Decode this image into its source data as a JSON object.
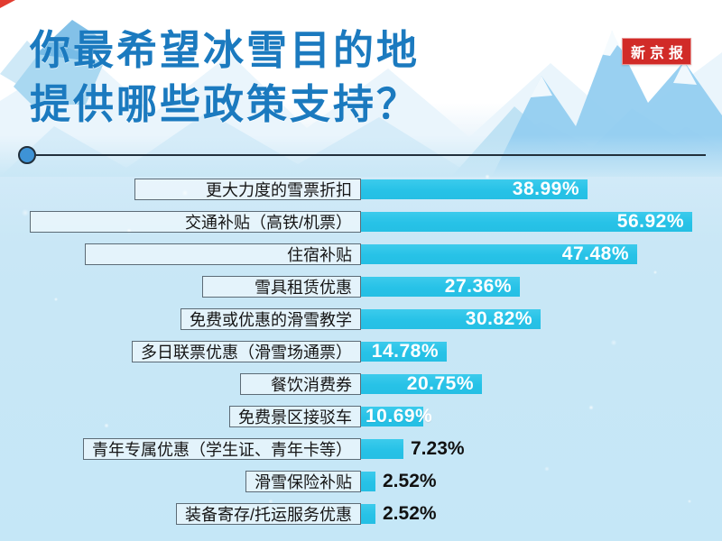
{
  "header": {
    "title_line1": "你最希望冰雪目的地",
    "title_line2": "提供哪些政策支持？",
    "badge_text": "新京报"
  },
  "colors": {
    "title": "#1b7abf",
    "badge_bg": "#d12b28",
    "badge_text": "#ffffff",
    "bar": "#27c2e7",
    "value_inside": "#ffffff",
    "value_outside": "#111111",
    "label_text": "#151515",
    "label_box_border": "#5c6b76",
    "background": "#c5e7f7",
    "header_bg": "#ffffff",
    "divider": "#22303c",
    "divider_dot": "#3e93d6",
    "corner_ribbon": "#e23c30"
  },
  "chart_data": {
    "type": "bar",
    "orientation": "horizontal",
    "title": "你最希望冰雪目的地提供哪些政策支持？",
    "unit": "%",
    "xlim": [
      0,
      60
    ],
    "grid": false,
    "legend": false,
    "bar_color": "#27c2e7",
    "categories": [
      "更大力度的雪票折扣",
      "交通补贴（高铁/机票）",
      "住宿补贴",
      "雪具租赁优惠",
      "免费或优惠的滑雪教学",
      "多日联票优惠（滑雪场通票）",
      "餐饮消费券",
      "免费景区接驳车",
      "青年专属优惠（学生证、青年卡等）",
      "滑雪保险补贴",
      "装备寄存/托运服务优惠"
    ],
    "values": [
      38.99,
      56.92,
      47.48,
      27.36,
      30.82,
      14.78,
      20.75,
      10.69,
      7.23,
      2.52,
      2.52
    ],
    "value_labels": [
      "38.99%",
      "56.92%",
      "47.48%",
      "27.36%",
      "30.82%",
      "14.78%",
      "20.75%",
      "10.69%",
      "7.23%",
      "2.52%",
      "2.52%"
    ]
  }
}
